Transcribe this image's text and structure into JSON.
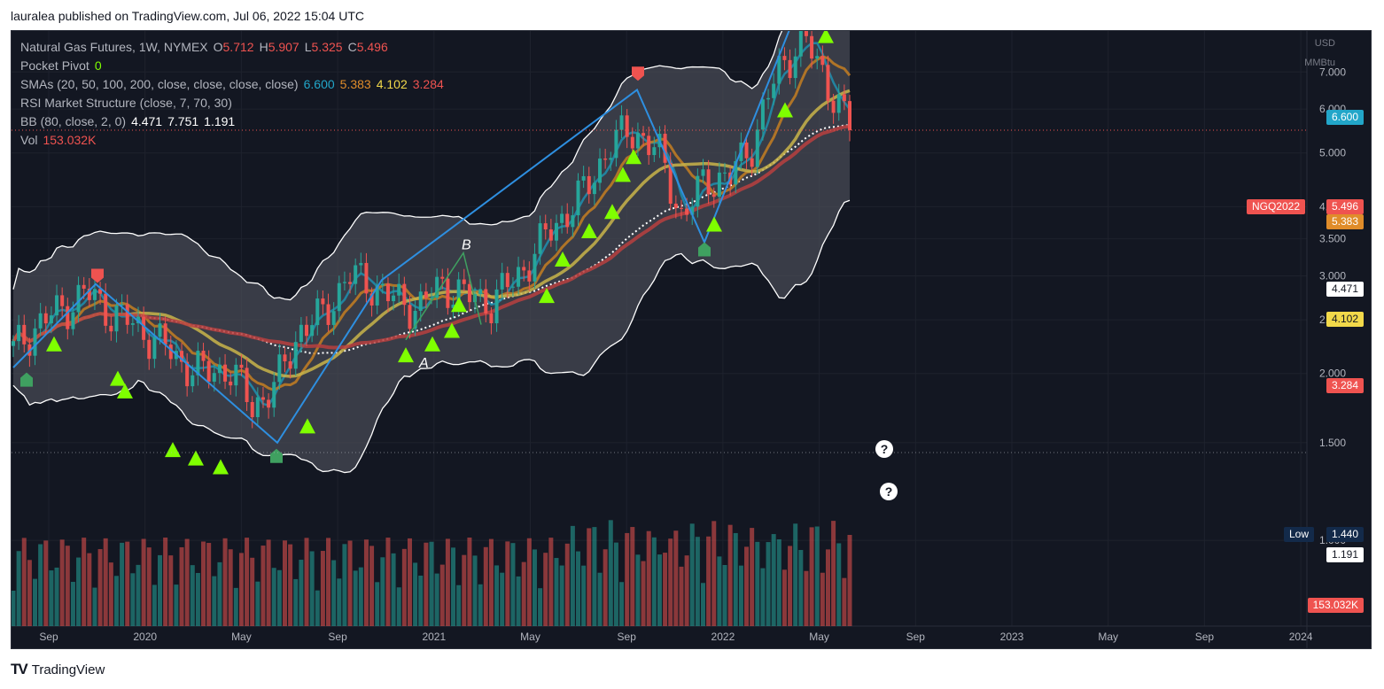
{
  "header": {
    "publish_line": "lauralea published on TradingView.com, Jul 06, 2022 15:04 UTC"
  },
  "legend": {
    "symbol": {
      "name": "Natural Gas Futures, 1W, NYMEX",
      "o_label": "O",
      "o": "5.712",
      "h_label": "H",
      "h": "5.907",
      "l_label": "L",
      "l": "5.325",
      "c_label": "C",
      "c": "5.496"
    },
    "pocket_pivot": {
      "label": "Pocket Pivot",
      "value": "0"
    },
    "smas": {
      "label": "SMAs (20, 50, 100, 200, close, close, close, close)",
      "v1": "6.600",
      "v2": "5.383",
      "v3": "4.102",
      "v4": "3.284"
    },
    "rsi": {
      "label": "RSI Market Structure (close, 7, 70, 30)"
    },
    "bb": {
      "label": "BB (80, close, 2, 0)",
      "v1": "4.471",
      "v2": "7.751",
      "v3": "1.191"
    },
    "vol": {
      "label": "Vol",
      "value": "153.032K"
    }
  },
  "price_axis": {
    "unit_top": "USD",
    "unit_bottom": "MMBtu",
    "ticks": [
      "7.000",
      "6.000",
      "5.000",
      "4.000",
      "3.500",
      "3.000",
      "2.500",
      "2.000",
      "1.500",
      "1.000"
    ],
    "tags": {
      "sma20": "6.600",
      "symbol_label": "NGQ2022",
      "last_price": "5.496",
      "sma50": "5.383",
      "bb_basis": "4.471",
      "sma100": "4.102",
      "sma200": "3.284",
      "low_label": "Low",
      "low_value": "1.440",
      "bb_lower": "1.191",
      "volume": "153.032K"
    }
  },
  "time_axis": {
    "ticks": [
      "Sep",
      "2020",
      "May",
      "Sep",
      "2021",
      "May",
      "Sep",
      "2022",
      "May",
      "Sep",
      "2023",
      "May",
      "Sep",
      "2024"
    ]
  },
  "annotations": {
    "wave_a": "A",
    "wave_b": "B",
    "question_mark": "?"
  },
  "footer": {
    "brand": "TradingView",
    "logo_glyph": "TV"
  },
  "colors": {
    "background": "#131722",
    "up": "#26a69a",
    "down": "#ef5350",
    "sma20": "#1f7f99",
    "sma50": "#b87a2a",
    "sma100": "#b8a642",
    "sma200": "#b84040",
    "zigzag": "#2e8fe0",
    "pocket_pivot": "#7fff00",
    "legend_green": "#26a69a"
  },
  "chart_data": {
    "type": "candlestick",
    "symbol": "NGQ2022",
    "x": [
      "2019-08",
      "2019-09",
      "2019-10",
      "2019-11",
      "2019-12",
      "2020-01",
      "2020-02",
      "2020-03",
      "2020-04",
      "2020-05",
      "2020-06",
      "2020-07",
      "2020-08",
      "2020-09",
      "2020-10",
      "2020-11",
      "2020-12",
      "2021-01",
      "2021-02",
      "2021-03",
      "2021-04",
      "2021-05",
      "2021-06",
      "2021-07",
      "2021-08",
      "2021-09",
      "2021-10",
      "2021-11",
      "2021-12",
      "2022-01",
      "2022-02",
      "2022-03",
      "2022-04",
      "2022-05",
      "2022-06",
      "2022-07"
    ],
    "close": [
      2.2,
      2.45,
      2.6,
      2.8,
      2.6,
      2.45,
      2.3,
      2.1,
      2.0,
      2.05,
      1.75,
      1.9,
      2.4,
      2.55,
      3.0,
      2.9,
      2.7,
      2.65,
      2.9,
      2.75,
      2.7,
      2.95,
      3.4,
      3.85,
      4.3,
      5.2,
      5.5,
      5.0,
      3.8,
      4.5,
      4.5,
      5.3,
      7.0,
      8.1,
      6.8,
      5.496
    ],
    "ylim": [
      0.7,
      8.3
    ],
    "y_scale": "log",
    "last": {
      "open": 5.712,
      "high": 5.907,
      "low": 5.325,
      "close": 5.496
    }
  }
}
